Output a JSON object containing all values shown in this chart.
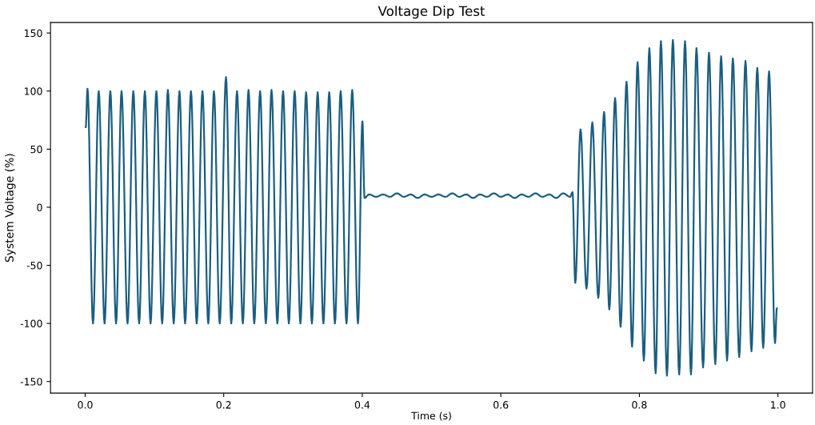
{
  "chart_data": {
    "type": "line",
    "title": "Voltage Dip Test",
    "xlabel": "Time (s)",
    "ylabel": "System Voltage (%)",
    "xlim": [
      -0.05,
      1.05
    ],
    "ylim": [
      -160,
      159
    ],
    "xticks": [
      {
        "value": 0,
        "label": "0.0"
      },
      {
        "value": 0.2,
        "label": "0.2"
      },
      {
        "value": 0.4,
        "label": "0.4"
      },
      {
        "value": 0.6,
        "label": "0.6"
      },
      {
        "value": 0.8,
        "label": "0.8"
      },
      {
        "value": 1,
        "label": "1.0"
      }
    ],
    "yticks": [
      -150,
      -100,
      -50,
      0,
      50,
      100,
      150
    ],
    "grid": false,
    "series": [
      {
        "color": "#1a5e80",
        "x": [
          0.0008,
          0.0034,
          0.0113,
          0.0196,
          0.028,
          0.0363,
          0.0446,
          0.0525,
          0.0612,
          0.0695,
          0.0779,
          0.0862,
          0.0944,
          0.1028,
          0.1111,
          0.1194,
          0.1278,
          0.1361,
          0.1443,
          0.1527,
          0.161,
          0.1693,
          0.1777,
          0.1859,
          0.1942,
          0.2033,
          0.2109,
          0.2192,
          0.2276,
          0.2358,
          0.2441,
          0.2525,
          0.2608,
          0.269,
          0.2774,
          0.2857,
          0.294,
          0.3024,
          0.3107,
          0.3189,
          0.3273,
          0.3356,
          0.3439,
          0.3523,
          0.3605,
          0.3688,
          0.3772,
          0.3855,
          0.3938,
          0.4002,
          0.4033,
          0.41,
          0.42,
          0.43,
          0.44,
          0.45,
          0.46,
          0.47,
          0.48,
          0.49,
          0.5,
          0.51,
          0.52,
          0.53,
          0.54,
          0.55,
          0.56,
          0.57,
          0.58,
          0.59,
          0.6,
          0.61,
          0.62,
          0.63,
          0.64,
          0.65,
          0.66,
          0.67,
          0.68,
          0.69,
          0.7,
          0.7035,
          0.7075,
          0.7151,
          0.7237,
          0.7321,
          0.7407,
          0.7491,
          0.7566,
          0.765,
          0.7729,
          0.7815,
          0.7895,
          0.7974,
          0.8065,
          0.8144,
          0.8235,
          0.8311,
          0.8398,
          0.8484,
          0.8575,
          0.8659,
          0.8745,
          0.8824,
          0.892,
          0.9005,
          0.9096,
          0.918,
          0.9266,
          0.935,
          0.9441,
          0.9532,
          0.9618,
          0.9702,
          0.9788,
          0.9872,
          0.9958,
          0.9985
        ],
        "values": [
          69,
          102,
          -100,
          100,
          -100,
          100,
          -100,
          100,
          -100,
          100,
          -100,
          100,
          -100,
          100,
          -100,
          101,
          -100,
          100,
          -100,
          100,
          -100,
          100,
          -100,
          100,
          -100,
          112,
          -100,
          100,
          -100,
          101,
          -100,
          100,
          -100,
          101,
          -100,
          100,
          -100,
          100,
          -100,
          99,
          -100,
          99,
          -100,
          99,
          -100,
          100,
          -100,
          101,
          -100,
          74,
          8,
          11,
          9,
          11,
          9,
          12,
          9,
          11,
          8,
          11,
          9,
          11,
          9,
          12,
          9,
          11,
          8,
          11,
          9,
          12,
          9,
          11,
          8,
          11,
          9,
          12,
          9,
          11,
          8,
          12,
          9,
          13,
          -65,
          67,
          -70,
          73,
          -78,
          82,
          -88,
          94,
          -103,
          108,
          -120,
          125,
          -132,
          137,
          -143,
          143,
          -145,
          144,
          -144,
          143,
          -144,
          137,
          -138,
          133,
          -135,
          130,
          -132,
          128,
          -129,
          126,
          -124,
          120,
          -121,
          117,
          -117,
          -87
        ]
      }
    ]
  }
}
